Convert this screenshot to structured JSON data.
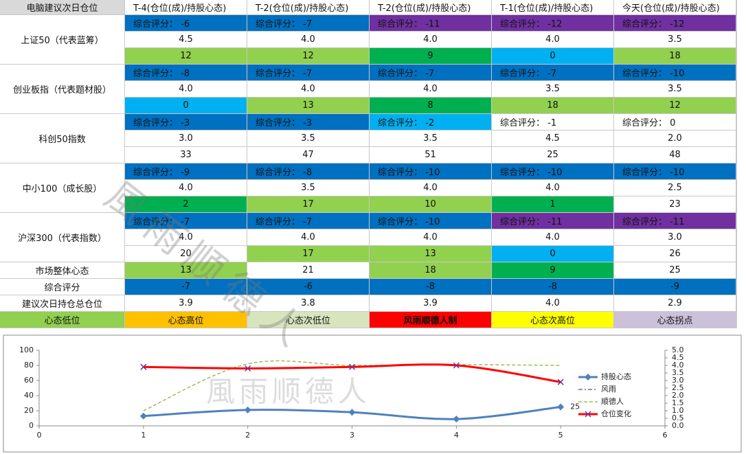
{
  "watermark": "風雨顺德人",
  "table": {
    "header": [
      "电脑建议次日仓位",
      "T-4(仓位(成)/持股心态)",
      "T-2(仓位(成)/持股心态)",
      "T-2(仓位(成)/持股心态)",
      "T-1(仓位(成)/持股心态)",
      "今天(仓位(成)/持股心态)"
    ],
    "groups": [
      {
        "label": "上证50（代表蓝筹）",
        "rows": [
          [
            {
              "text": "综合评分： -6",
              "fill": "#0070c0"
            },
            {
              "text": "综合评分： -7",
              "fill": "#0070c0"
            },
            {
              "text": "综合评分： -11",
              "fill": "#7030a0"
            },
            {
              "text": "综合评分： -12",
              "fill": "#7030a0"
            },
            {
              "text": "综合评分： -12",
              "fill": "#7030a0"
            }
          ],
          [
            {
              "text": "4.5"
            },
            {
              "text": "4.0"
            },
            {
              "text": "4.0"
            },
            {
              "text": "4.0"
            },
            {
              "text": "3.5"
            }
          ],
          [
            {
              "text": "12",
              "fill": "#92d050"
            },
            {
              "text": "12",
              "fill": "#92d050"
            },
            {
              "text": "9",
              "fill": "#00b050"
            },
            {
              "text": "0",
              "fill": "#00b0f0"
            },
            {
              "text": "18",
              "fill": "#92d050"
            }
          ]
        ]
      },
      {
        "label": "创业板指（代表题材股）",
        "rows": [
          [
            {
              "text": "综合评分： -8",
              "fill": "#0070c0"
            },
            {
              "text": "综合评分： -7",
              "fill": "#0070c0"
            },
            {
              "text": "综合评分： -7",
              "fill": "#0070c0"
            },
            {
              "text": "综合评分： -7",
              "fill": "#0070c0"
            },
            {
              "text": "综合评分： -10",
              "fill": "#0070c0"
            }
          ],
          [
            {
              "text": "4.0"
            },
            {
              "text": "4.0"
            },
            {
              "text": "4.0"
            },
            {
              "text": "3.5"
            },
            {
              "text": "3.5"
            }
          ],
          [
            {
              "text": "0",
              "fill": "#00b0f0"
            },
            {
              "text": "13",
              "fill": "#92d050"
            },
            {
              "text": "8",
              "fill": "#00b050"
            },
            {
              "text": "18",
              "fill": "#92d050"
            },
            {
              "text": "12",
              "fill": "#92d050"
            }
          ]
        ]
      },
      {
        "label": "科创50指数",
        "rows": [
          [
            {
              "text": "综合评分： -3",
              "fill": "#0070c0"
            },
            {
              "text": "综合评分： -3",
              "fill": "#0070c0"
            },
            {
              "text": "综合评分： -2",
              "fill": "#00b0f0"
            },
            {
              "text": "综合评分： -1"
            },
            {
              "text": "综合评分： 0"
            }
          ],
          [
            {
              "text": "3.0"
            },
            {
              "text": "3.5"
            },
            {
              "text": "3.5"
            },
            {
              "text": "4.5"
            },
            {
              "text": "2.0"
            }
          ],
          [
            {
              "text": "33"
            },
            {
              "text": "47"
            },
            {
              "text": "51"
            },
            {
              "text": "25"
            },
            {
              "text": "48"
            }
          ]
        ]
      },
      {
        "label": "中小100（成长股）",
        "rows": [
          [
            {
              "text": "综合评分： -9",
              "fill": "#0070c0"
            },
            {
              "text": "综合评分： -8",
              "fill": "#0070c0"
            },
            {
              "text": "综合评分： -10",
              "fill": "#0070c0"
            },
            {
              "text": "综合评分： -10",
              "fill": "#0070c0"
            },
            {
              "text": "综合评分： -10",
              "fill": "#0070c0"
            }
          ],
          [
            {
              "text": "4.0"
            },
            {
              "text": "3.5"
            },
            {
              "text": "4.0"
            },
            {
              "text": "4.0"
            },
            {
              "text": "2.5"
            }
          ],
          [
            {
              "text": "2",
              "fill": "#00b050"
            },
            {
              "text": "17",
              "fill": "#92d050"
            },
            {
              "text": "10",
              "fill": "#92d050"
            },
            {
              "text": "1",
              "fill": "#00b050"
            },
            {
              "text": "23"
            }
          ]
        ]
      },
      {
        "label": "沪深300（代表指数）",
        "rows": [
          [
            {
              "text": "综合评分： -7",
              "fill": "#0070c0"
            },
            {
              "text": "综合评分： -7",
              "fill": "#0070c0"
            },
            {
              "text": "综合评分： -10",
              "fill": "#0070c0"
            },
            {
              "text": "综合评分： -11",
              "fill": "#7030a0"
            },
            {
              "text": "综合评分： -11",
              "fill": "#7030a0"
            }
          ],
          [
            {
              "text": "4.0"
            },
            {
              "text": "4.0"
            },
            {
              "text": "4.0"
            },
            {
              "text": "4.0"
            },
            {
              "text": "3.0"
            }
          ],
          [
            {
              "text": "20"
            },
            {
              "text": "17",
              "fill": "#92d050"
            },
            {
              "text": "13",
              "fill": "#92d050"
            },
            {
              "text": "0",
              "fill": "#00b0f0"
            },
            {
              "text": "26"
            }
          ]
        ]
      }
    ],
    "summary": [
      {
        "label": "市场整体心态",
        "cells": [
          {
            "text": "13",
            "fill": "#92d050"
          },
          {
            "text": "21"
          },
          {
            "text": "18",
            "fill": "#92d050"
          },
          {
            "text": "9",
            "fill": "#00b050"
          },
          {
            "text": "25"
          }
        ]
      },
      {
        "label": "综合评分",
        "cells": [
          {
            "text": "-7",
            "fill": "#0070c0"
          },
          {
            "text": "-6",
            "fill": "#0070c0"
          },
          {
            "text": "-8",
            "fill": "#0070c0"
          },
          {
            "text": "-8",
            "fill": "#0070c0"
          },
          {
            "text": "-9",
            "fill": "#0070c0"
          }
        ]
      },
      {
        "label": "建议次日持仓总仓位",
        "cells": [
          {
            "text": "3.9"
          },
          {
            "text": "3.8"
          },
          {
            "text": "3.9"
          },
          {
            "text": "4.0"
          },
          {
            "text": "2.9"
          }
        ]
      }
    ],
    "legend": [
      {
        "text": "心态低位",
        "fill": "#92d050"
      },
      {
        "text": "心态高位",
        "fill": "#ffc000"
      },
      {
        "text": "心态次低位",
        "fill": "#d8e4bc"
      },
      {
        "text": "风雨顺德人制",
        "fill": "#ff0000",
        "bold": true
      },
      {
        "text": "心态次高位",
        "fill": "#ffff00"
      },
      {
        "text": "心态拐点",
        "fill": "#ccc0da"
      }
    ]
  },
  "chart_data": {
    "type": "line",
    "x": [
      1,
      2,
      3,
      4,
      5
    ],
    "xlim": [
      0,
      6
    ],
    "xticks": [
      0,
      1,
      2,
      3,
      4,
      5,
      6
    ],
    "ylim": [
      0,
      100
    ],
    "yticks": [
      0,
      20,
      40,
      60,
      80,
      100
    ],
    "y2lim": [
      0,
      5
    ],
    "y2ticks": [
      {
        "value": 0,
        "label": "0.0"
      },
      {
        "value": 0.5,
        "label": "0.5"
      },
      {
        "value": 1,
        "label": "1.0"
      },
      {
        "value": 1.5,
        "label": "1.5"
      },
      {
        "value": 2,
        "label": "2.0"
      },
      {
        "value": 2.5,
        "label": "2.5"
      },
      {
        "value": 3,
        "label": "3.0"
      },
      {
        "value": 3.5,
        "label": "3.5"
      },
      {
        "value": 4,
        "label": "4.0"
      },
      {
        "value": 4.5,
        "label": "4.5"
      },
      {
        "value": 5,
        "label": "5.0"
      }
    ],
    "series": [
      {
        "name": "持股心态",
        "color": "#4f81bd",
        "values": [
          13,
          21,
          18,
          9,
          25
        ],
        "marker": "diamond",
        "label_last": true
      },
      {
        "name": "风雨",
        "color": "#8064a2",
        "values": [
          3.9,
          3.8,
          3.9,
          4.0,
          2.9
        ],
        "axis": "y2",
        "dash": "6 3 2 3"
      },
      {
        "name": "顺德人",
        "color": "#9bbb59",
        "values": [
          1.0,
          4.1,
          4.0,
          4.05,
          4.0
        ],
        "axis": "y2",
        "dash": "5 3"
      },
      {
        "name": "仓位变化",
        "color": "#ff0000",
        "values": [
          3.9,
          3.8,
          3.9,
          4.0,
          2.9
        ],
        "axis": "y2",
        "marker": "x"
      }
    ]
  }
}
